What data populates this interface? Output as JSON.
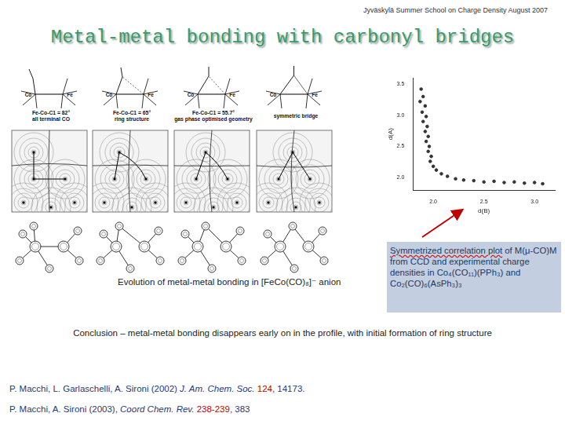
{
  "header": {
    "event": "Jyväskylä Summer School  on Charge Density August 2007",
    "title": "Metal-metal bonding with carbonyl bridges"
  },
  "panels": [
    {
      "angle_label": "Fe-Co-C1 = 82°",
      "caption": "all terminal CO",
      "atoms": [
        "Co",
        "Fe"
      ]
    },
    {
      "angle_label": "Fe-Co-C1 = 65°",
      "caption": "ring structure",
      "atoms": [
        "Co",
        "Fe"
      ]
    },
    {
      "angle_label": "Fe-Co-C1 = 55.7°",
      "caption": "gas phase optimised geometry",
      "atoms": [
        "Co",
        "Fe"
      ]
    },
    {
      "angle_label": "",
      "caption": "symmetric bridge",
      "atoms": [
        "Co",
        "Fe"
      ]
    }
  ],
  "figure_caption": "Evolution of metal-metal bonding in [FeCo(CO)₈]⁻ anion",
  "chart_data": {
    "type": "scatter",
    "x_label": "d(B)",
    "y_label": "d(A)",
    "x": [
      1.88,
      1.9,
      1.87,
      1.92,
      1.89,
      1.93,
      1.9,
      1.94,
      1.92,
      1.95,
      1.93,
      1.96,
      1.95,
      1.98,
      1.97,
      2.0,
      2.03,
      2.08,
      2.14,
      2.22,
      2.3,
      2.4,
      2.5,
      2.6,
      2.7,
      2.8,
      2.9,
      3.0,
      3.08
    ],
    "values": [
      3.42,
      3.3,
      3.22,
      3.15,
      3.05,
      2.98,
      2.9,
      2.82,
      2.74,
      2.66,
      2.58,
      2.5,
      2.42,
      2.34,
      2.26,
      2.18,
      2.12,
      2.06,
      2.02,
      1.98,
      1.96,
      1.95,
      1.93,
      1.94,
      1.92,
      1.93,
      1.91,
      1.92,
      1.9
    ],
    "color": "#333333",
    "marker": "circle",
    "grid": false,
    "xlim": [
      1.8,
      3.2
    ],
    "xticks": [
      {
        "value": 2,
        "label": "2.0"
      },
      {
        "value": 2.5,
        "label": "2.5"
      },
      {
        "value": 3,
        "label": "3.0"
      }
    ],
    "ylim": [
      1.8,
      3.6
    ],
    "yticks": [
      {
        "value": 2,
        "label": "2.0"
      },
      {
        "value": 2.5,
        "label": "2.5"
      },
      {
        "value": 3,
        "label": "3.0"
      },
      {
        "value": 3.5,
        "label": "3.5"
      }
    ]
  },
  "callout": {
    "highlight": "Symmetrized correlation plot",
    "text": " of M(μ-CO)M from CCD and experimental charge densities in Co₄(CO₁₁)(PPh₃) and Co₂(CO)₆(AsPh₃)₃"
  },
  "conclusion": "Conclusion – metal-metal bonding disappears early on in the profile, with initial formation of ring structure",
  "references": [
    {
      "authors": "P. Macchi, L. Garlaschelli,  A. Sironi (2002) ",
      "journal": "J. Am. Chem. Soc.",
      "volume": "124",
      "pages": ", 14173."
    },
    {
      "authors": "P. Macchi, A. Sironi (2003), ",
      "journal": "Coord Chem. Rev.",
      "volume": "238-239",
      "pages": ", 383"
    }
  ]
}
